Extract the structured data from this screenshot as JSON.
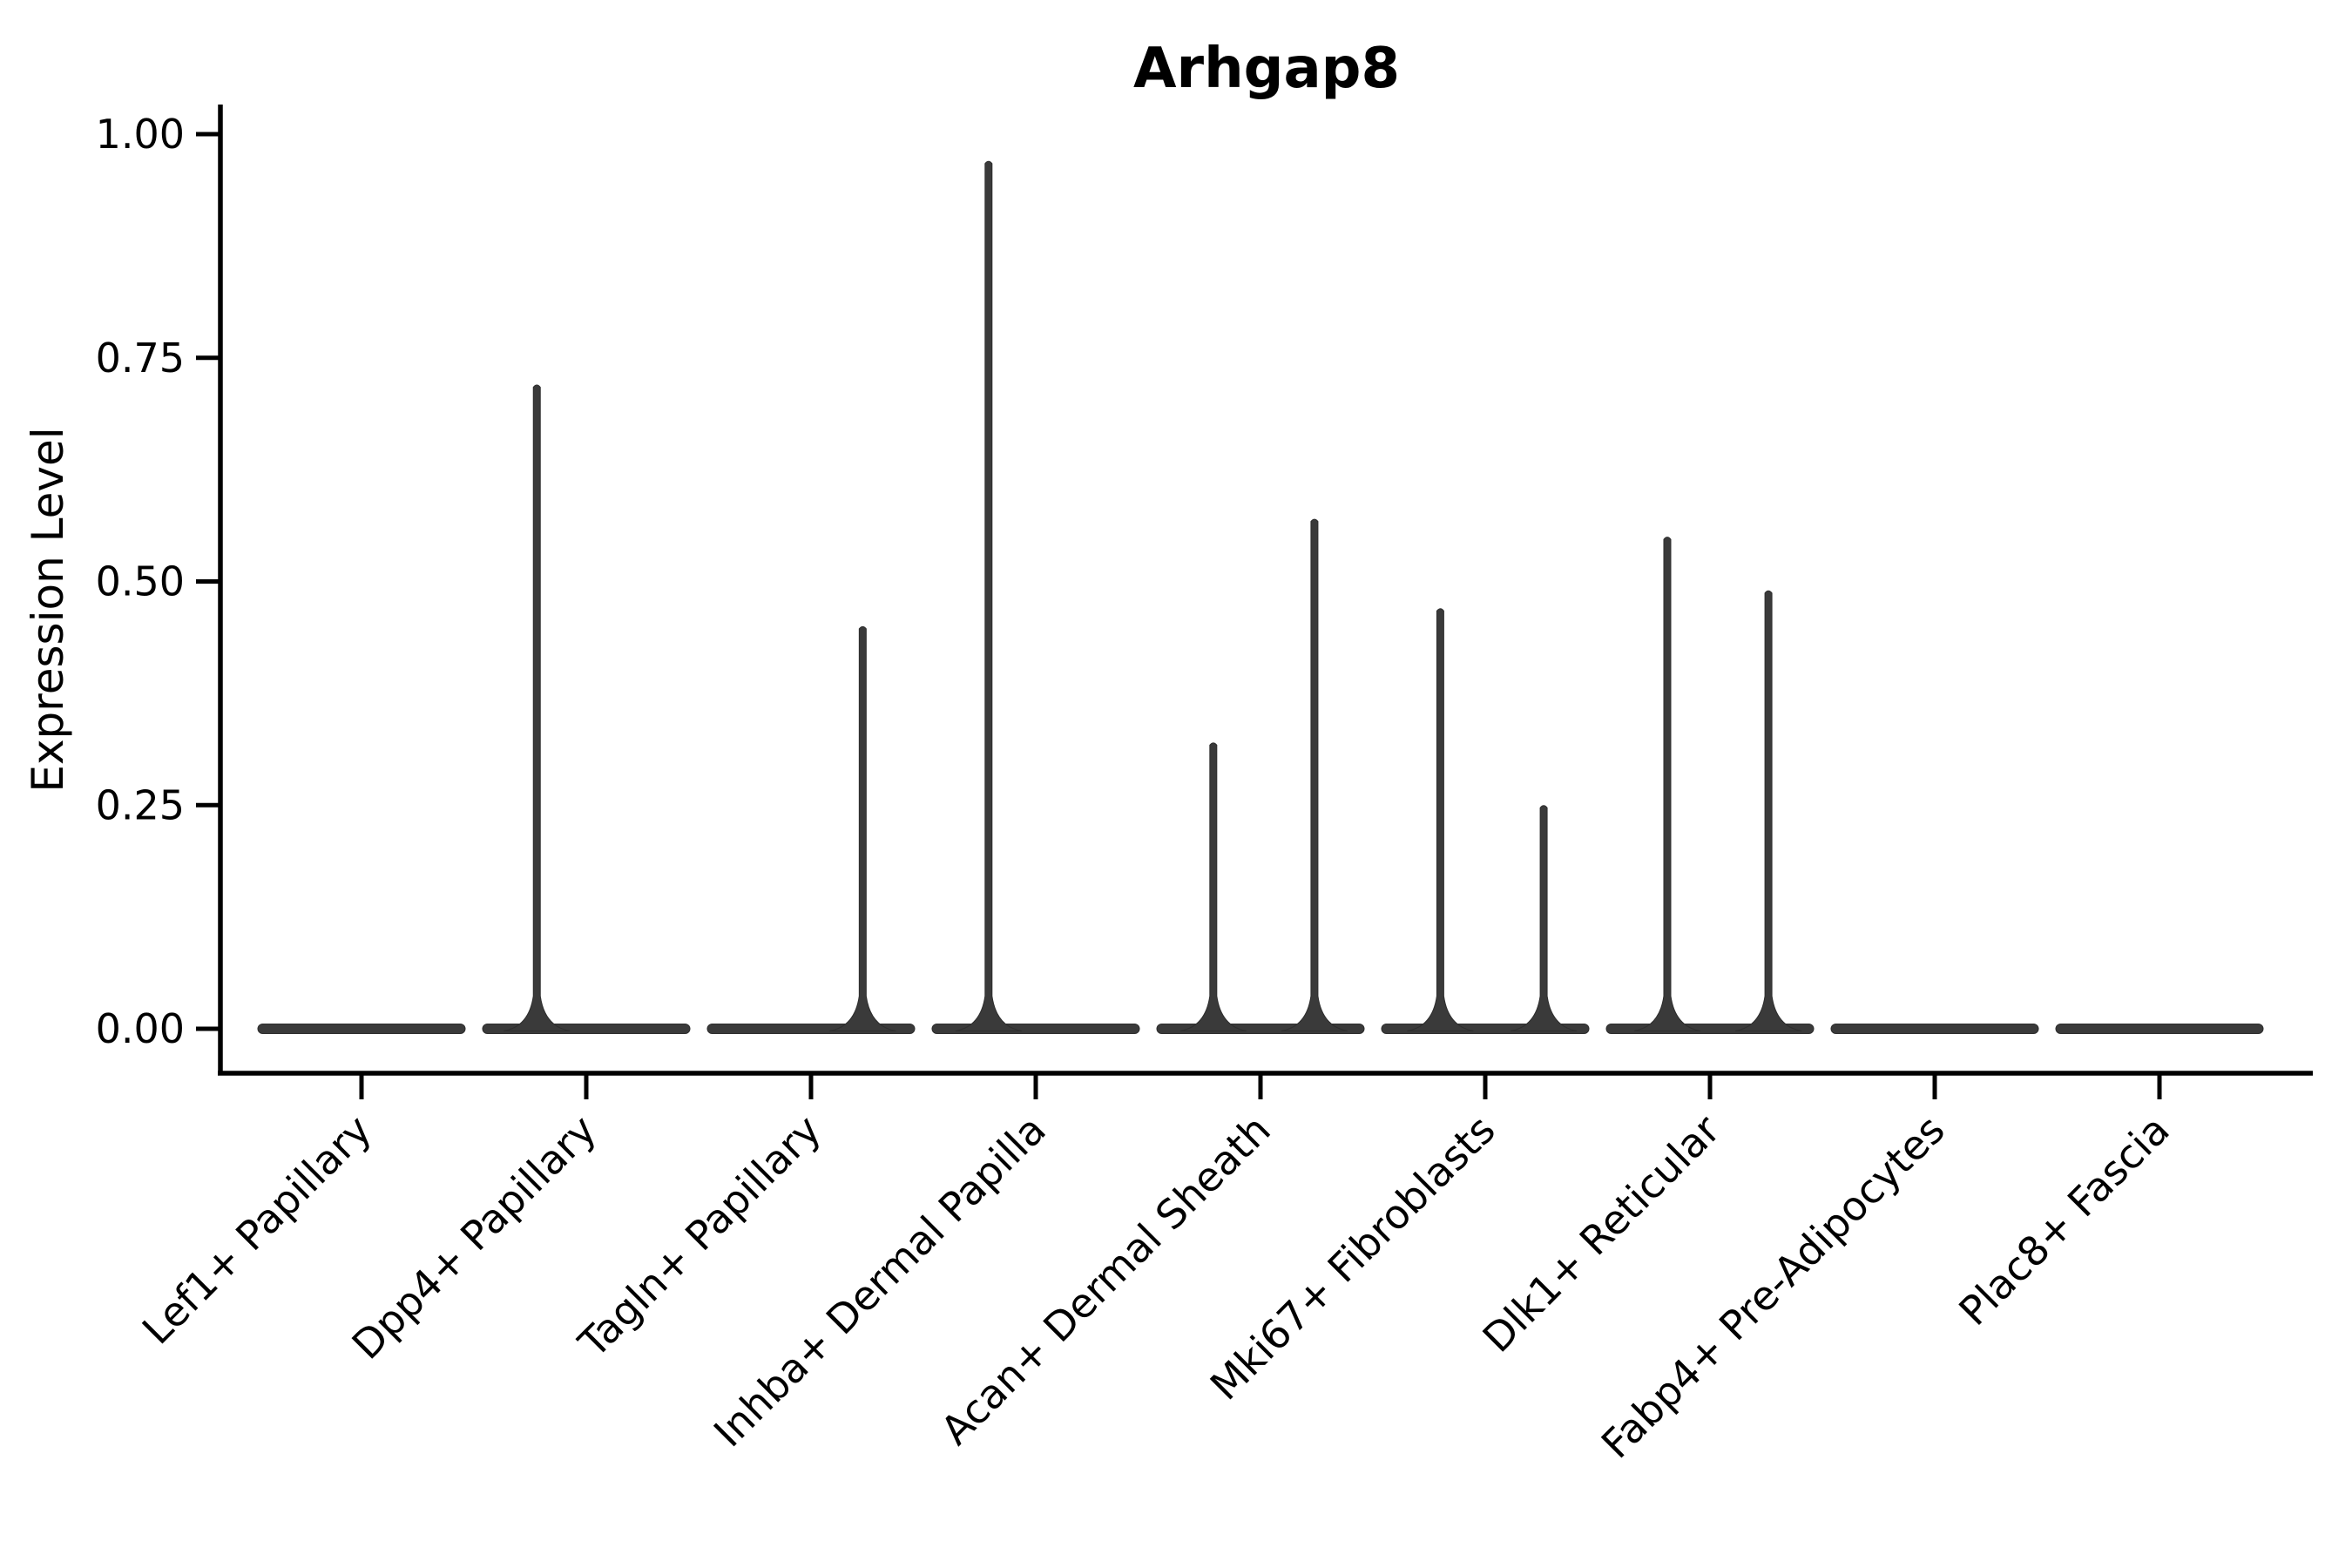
{
  "chart_data": {
    "type": "violin",
    "title": "Arhgap8",
    "xlabel": "",
    "ylabel": "Expression Level",
    "ylim": [
      0,
      1
    ],
    "y_tick_values": [
      0.0,
      0.25,
      0.5,
      0.75,
      1.0
    ],
    "y_tick_labels": [
      "0.00",
      "0.25",
      "0.50",
      "0.75",
      "1.00"
    ],
    "x_tick_rotation_deg": 45,
    "grid": false,
    "legend": "none",
    "categories": [
      "Lef1+ Papillary",
      "Dpp4+ Papillary",
      "Tagln+ Papillary",
      "Inhba+ Dermal Papilla",
      "Acan+ Dermal Sheath",
      "Mki67+ Fibroblasts",
      "Dlk1+ Reticular",
      "Fabp4+ Pre-Adipocytes",
      "Plac8+ Fascia"
    ],
    "violins": [
      {
        "category": "Lef1+ Papillary",
        "base_value": 0,
        "spikes": []
      },
      {
        "category": "Dpp4+ Papillary",
        "base_value": 0,
        "spikes": [
          {
            "max": 0.72,
            "offset_frac": -0.22
          }
        ]
      },
      {
        "category": "Tagln+ Papillary",
        "base_value": 0,
        "spikes": [
          {
            "max": 0.45,
            "offset_frac": 0.23
          }
        ]
      },
      {
        "category": "Inhba+ Dermal Papilla",
        "base_value": 0,
        "spikes": [
          {
            "max": 0.97,
            "offset_frac": -0.21
          }
        ]
      },
      {
        "category": "Acan+ Dermal Sheath",
        "base_value": 0,
        "spikes": [
          {
            "max": 0.32,
            "offset_frac": -0.21
          },
          {
            "max": 0.57,
            "offset_frac": 0.24
          }
        ]
      },
      {
        "category": "Mki67+ Fibroblasts",
        "base_value": 0,
        "spikes": [
          {
            "max": 0.47,
            "offset_frac": -0.2
          },
          {
            "max": 0.25,
            "offset_frac": 0.26
          }
        ]
      },
      {
        "category": "Dlk1+ Reticular",
        "base_value": 0,
        "spikes": [
          {
            "max": 0.55,
            "offset_frac": -0.19
          },
          {
            "max": 0.49,
            "offset_frac": 0.26
          }
        ]
      },
      {
        "category": "Fabp4+ Pre-Adipocytes",
        "base_value": 0,
        "spikes": []
      },
      {
        "category": "Plac8+ Fascia",
        "base_value": 0,
        "spikes": []
      }
    ],
    "colors": {
      "violin_fill": "#3a3a3a",
      "violin_stroke": "#2e2e2e",
      "axis": "#000000",
      "text": "#000000",
      "background": "#ffffff"
    }
  }
}
